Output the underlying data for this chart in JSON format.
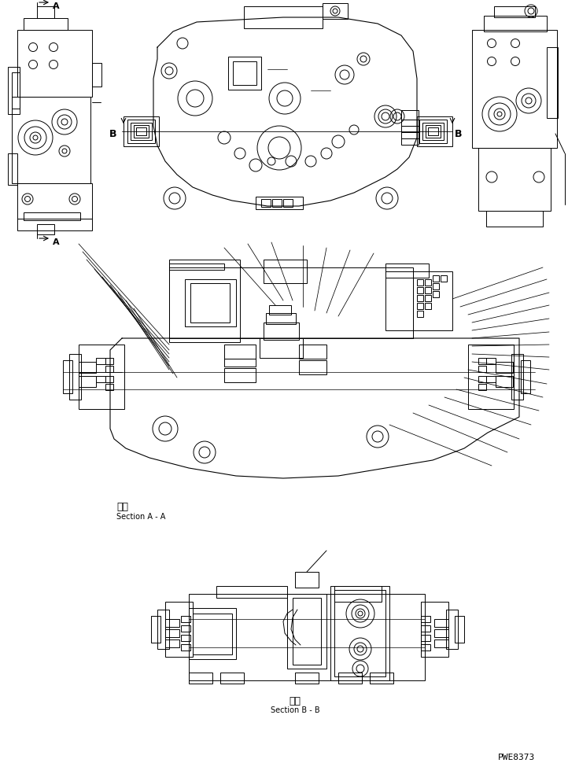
{
  "background_color": "#ffffff",
  "line_color": "#000000",
  "figure_width": 7.22,
  "figure_height": 9.84,
  "dpi": 100,
  "label_A_top": "A",
  "label_A_bottom": "A",
  "label_B_left": "B",
  "label_B_right": "B",
  "section_aa_kanji": "断面",
  "section_aa_text": "Section A - A",
  "section_bb_kanji": "断面",
  "section_bb_text": "Section B - B",
  "part_number": "PWE8373"
}
